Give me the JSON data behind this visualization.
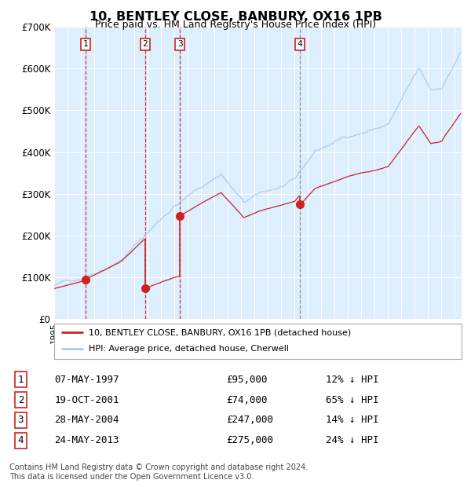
{
  "title": "10, BENTLEY CLOSE, BANBURY, OX16 1PB",
  "subtitle": "Price paid vs. HM Land Registry's House Price Index (HPI)",
  "ylim": [
    0,
    700000
  ],
  "yticks": [
    0,
    100000,
    200000,
    300000,
    400000,
    500000,
    600000,
    700000
  ],
  "ytick_labels": [
    "£0",
    "£100K",
    "£200K",
    "£300K",
    "£400K",
    "£500K",
    "£600K",
    "£700K"
  ],
  "xlim_start": 1995.0,
  "xlim_end": 2025.5,
  "hpi_color": "#aaccee",
  "price_color": "#cc2222",
  "plot_bg_color": "#ddeeff",
  "grid_color": "#ffffff",
  "sale_dates": [
    1997.35,
    2001.8,
    2004.41,
    2013.39
  ],
  "sale_prices": [
    95000,
    74000,
    247000,
    275000
  ],
  "sale_labels": [
    "1",
    "2",
    "3",
    "4"
  ],
  "legend_labels": [
    "10, BENTLEY CLOSE, BANBURY, OX16 1PB (detached house)",
    "HPI: Average price, detached house, Cherwell"
  ],
  "table_data": [
    [
      "1",
      "07-MAY-1997",
      "£95,000",
      "12% ↓ HPI"
    ],
    [
      "2",
      "19-OCT-2001",
      "£74,000",
      "65% ↓ HPI"
    ],
    [
      "3",
      "28-MAY-2004",
      "£247,000",
      "14% ↓ HPI"
    ],
    [
      "4",
      "24-MAY-2013",
      "£275,000",
      "24% ↓ HPI"
    ]
  ],
  "footer": "Contains HM Land Registry data © Crown copyright and database right 2024.\nThis data is licensed under the Open Government Licence v3.0."
}
